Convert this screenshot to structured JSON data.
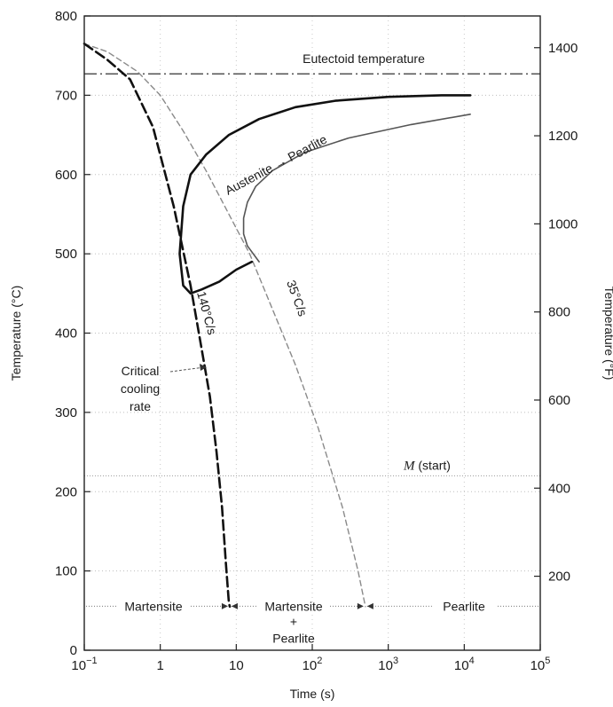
{
  "chart_data": {
    "type": "line",
    "x_scale": "log",
    "xlabel": "Time (s)",
    "ylabel_left": "Temperature (°C)",
    "ylabel_right": "Temperature (°F)",
    "xlim": [
      0.1,
      100000
    ],
    "ylim": [
      0,
      800
    ],
    "x_ticks": [
      {
        "value": 0.1,
        "base": "10",
        "exp": "−1",
        "plain": ""
      },
      {
        "value": 1,
        "base": "",
        "exp": "",
        "plain": "1"
      },
      {
        "value": 10,
        "base": "",
        "exp": "",
        "plain": "10"
      },
      {
        "value": 100,
        "base": "10",
        "exp": "2",
        "plain": ""
      },
      {
        "value": 1000,
        "base": "10",
        "exp": "3",
        "plain": ""
      },
      {
        "value": 10000,
        "base": "10",
        "exp": "4",
        "plain": ""
      },
      {
        "value": 100000,
        "base": "10",
        "exp": "5",
        "plain": ""
      }
    ],
    "y_ticks_left": [
      0,
      100,
      200,
      300,
      400,
      500,
      600,
      700,
      800
    ],
    "y_ticks_right_f": [
      200,
      400,
      600,
      800,
      1000,
      1200,
      1400
    ],
    "horizontal_lines": [
      {
        "label": "Eutectoid temperature",
        "y": 727,
        "style": "dash-dot"
      },
      {
        "label_italic": "M",
        "label_rest": " (start)",
        "y": 220,
        "style": "dotted"
      }
    ],
    "series": [
      {
        "kind": "transformation-start",
        "style": "solid-thick",
        "x": [
          16,
          10,
          6,
          3.5,
          2.5,
          2,
          1.8,
          2,
          2.5,
          4,
          8,
          20,
          60,
          200,
          1000,
          5000,
          12000
        ],
        "y": [
          490,
          480,
          465,
          455,
          450,
          460,
          500,
          560,
          600,
          625,
          650,
          670,
          685,
          693,
          698,
          700,
          700
        ]
      },
      {
        "kind": "transformation-end",
        "style": "solid-thin",
        "x": [
          20,
          14,
          12.5,
          12.5,
          14,
          18,
          30,
          80,
          300,
          2000,
          12000
        ],
        "y": [
          490,
          510,
          525,
          545,
          565,
          585,
          605,
          628,
          646,
          663,
          676
        ]
      },
      {
        "name": "140°C/s",
        "style": "dashed-thick",
        "x": [
          0.1,
          0.2,
          0.4,
          0.8,
          1.5,
          2.5,
          3.5,
          4.5,
          5.5,
          6.5,
          7.3,
          8,
          8.2
        ],
        "y": [
          765,
          745,
          720,
          660,
          560,
          460,
          380,
          320,
          250,
          180,
          110,
          60,
          55
        ]
      },
      {
        "name": "35°C/s",
        "style": "dashed-thin",
        "x": [
          0.1,
          0.2,
          0.5,
          1,
          2,
          4,
          8,
          15,
          30,
          60,
          120,
          250,
          400,
          500
        ],
        "y": [
          765,
          755,
          730,
          700,
          655,
          605,
          550,
          500,
          430,
          360,
          280,
          180,
          100,
          55
        ]
      }
    ],
    "annotations": {
      "austenite_pearlite": "Austenite → Pearlite",
      "critical_line1": "Critical",
      "critical_line2": "cooling",
      "critical_line3": "rate",
      "label_140": "140°C/s",
      "label_35": "35°C/s",
      "bottom_martensite": "Martensite",
      "bottom_mixed_line1": "Martensite",
      "bottom_mixed_line2": "+",
      "bottom_mixed_line3": "Pearlite",
      "bottom_pearlite": "Pearlite"
    }
  }
}
